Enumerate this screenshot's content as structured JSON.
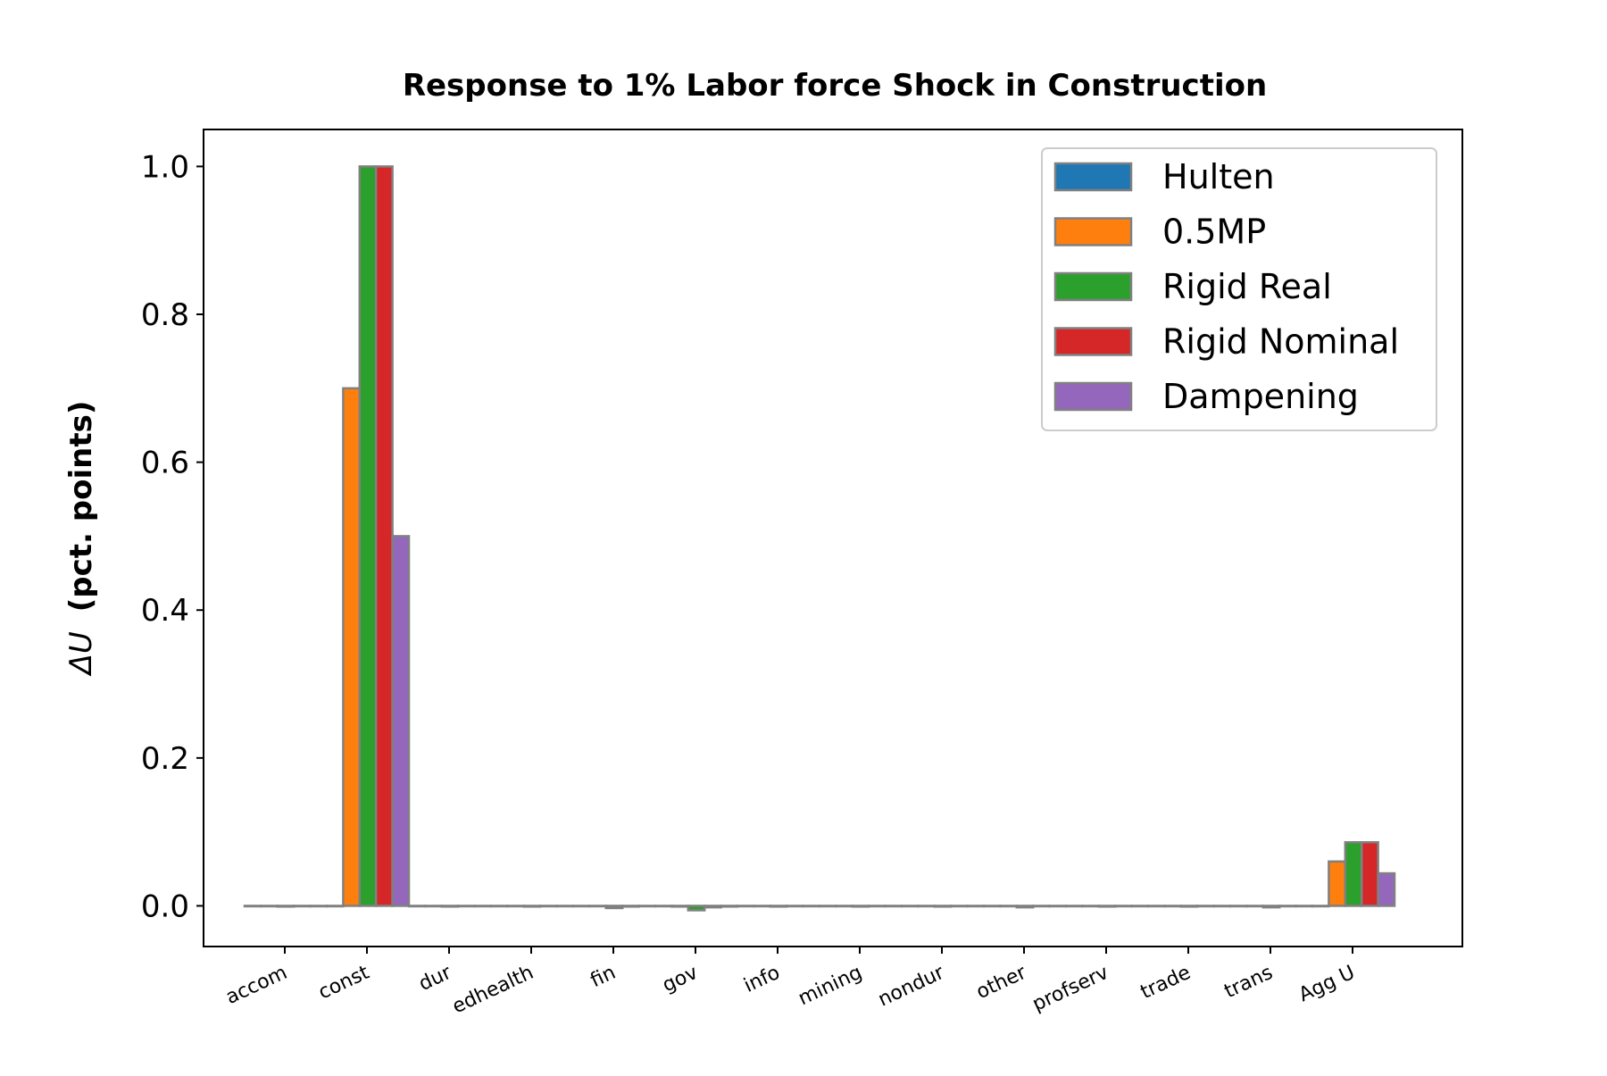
{
  "chart_data": {
    "type": "bar",
    "title": "Response to 1% Labor force Shock in Construction",
    "xlabel": "",
    "ylabel_symbol": "ΔU",
    "ylabel_text": "(pct. points)",
    "categories": [
      "accom",
      "const",
      "dur",
      "edhealth",
      "fin",
      "gov",
      "info",
      "mining",
      "nondur",
      "other",
      "profserv",
      "trade",
      "trans",
      "Agg U"
    ],
    "ylim": [
      -0.055,
      1.05
    ],
    "yticks": [
      "0.0",
      "0.2",
      "0.4",
      "0.6",
      "0.8",
      "1.0"
    ],
    "grid": false,
    "legend_position": "top-right",
    "edge_color": "#808080",
    "series": [
      {
        "name": "Hulten",
        "color": "#1f77b4",
        "values": [
          0,
          0,
          0,
          0,
          0,
          0,
          0,
          0,
          0,
          0,
          0,
          0,
          0,
          0
        ]
      },
      {
        "name": "0.5MP",
        "color": "#ff7f0e",
        "values": [
          0,
          0.7,
          0,
          0,
          0,
          -0.001,
          0,
          0,
          0,
          0,
          0,
          0,
          0,
          0.06
        ]
      },
      {
        "name": "Rigid Real",
        "color": "#2ca02c",
        "values": [
          -0.001,
          1.0,
          -0.001,
          -0.001,
          -0.003,
          -0.006,
          -0.001,
          -0.001,
          -0.001,
          -0.002,
          -0.001,
          -0.001,
          -0.002,
          0.086
        ]
      },
      {
        "name": "Rigid Nominal",
        "color": "#d62728",
        "values": [
          0,
          1.0,
          0,
          0,
          -0.001,
          -0.002,
          0,
          0,
          0,
          0,
          0,
          0,
          0,
          0.086
        ]
      },
      {
        "name": "Dampening",
        "color": "#9467bd",
        "values": [
          0,
          0.5,
          0,
          0,
          0,
          -0.001,
          0,
          0,
          0,
          0,
          0,
          0,
          0,
          0.044
        ]
      }
    ]
  }
}
